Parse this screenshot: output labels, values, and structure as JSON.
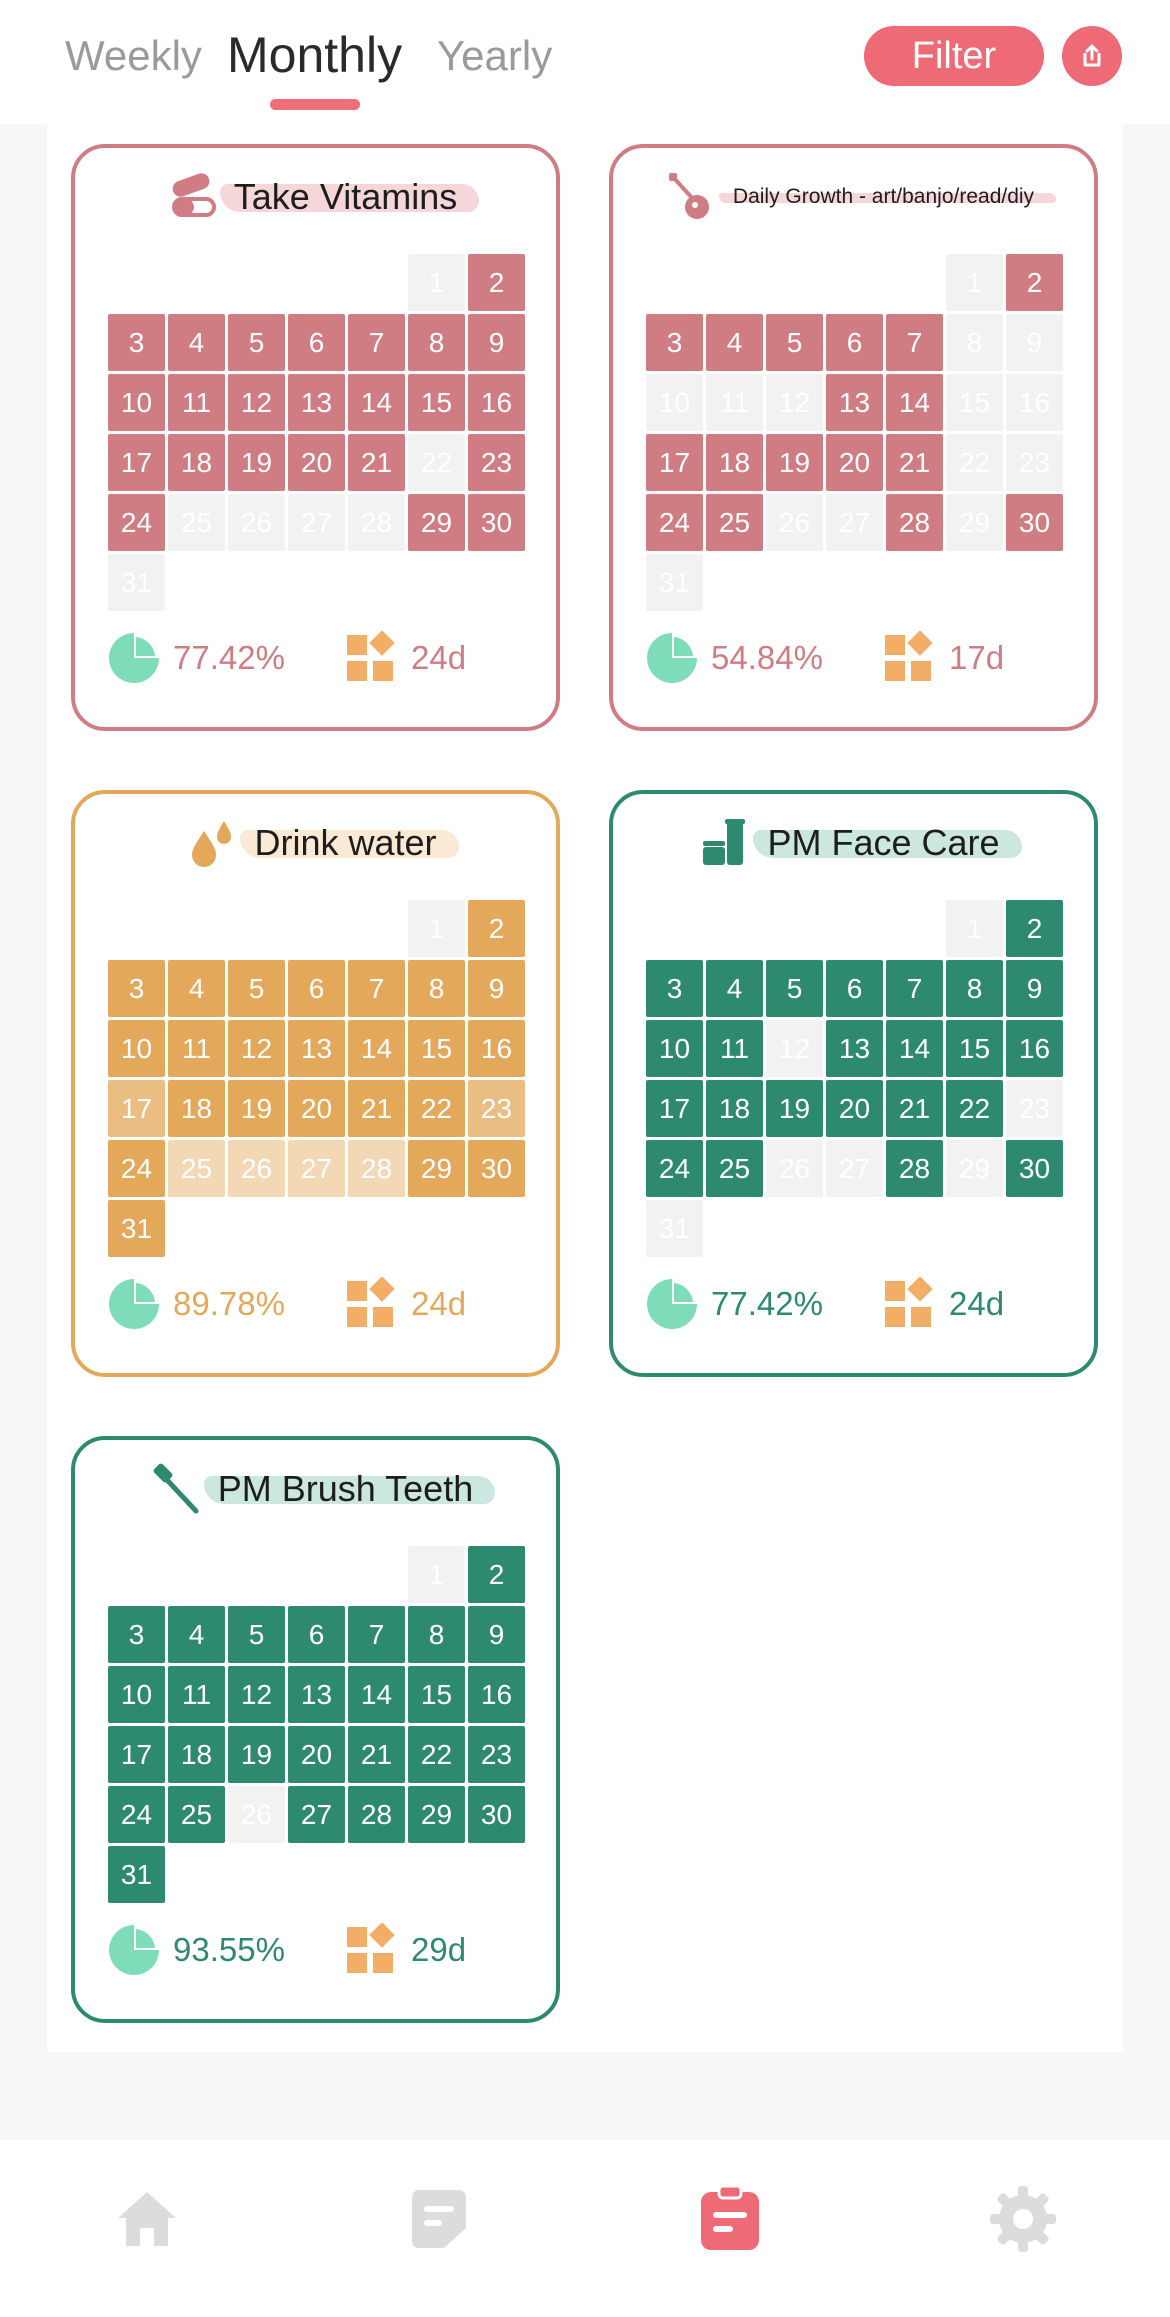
{
  "tabs": {
    "weekly": "Weekly",
    "monthly": "Monthly",
    "yearly": "Yearly",
    "active": "monthly"
  },
  "filter_label": "Filter",
  "icons": {
    "share": "share-icon",
    "home": "home-icon",
    "notes": "notes-icon",
    "stats": "stats-clipboard-icon",
    "settings": "gear-icon",
    "rate": "pie-chart-icon",
    "count": "blocks-icon"
  },
  "colors": {
    "accent": "#ee6a76",
    "pink": "#d07c83",
    "orange": "#e3a85a",
    "green": "#2e8a6f",
    "off": "#f2f2f2",
    "pie": "#7fdcb9"
  },
  "habits": [
    {
      "title": "Take Vitamins",
      "icon": "pills-icon",
      "color": "#d07c83",
      "rate": "77.42%",
      "days": "24d",
      "on": [
        2,
        3,
        4,
        5,
        6,
        7,
        8,
        9,
        10,
        11,
        12,
        13,
        14,
        15,
        16,
        17,
        18,
        19,
        20,
        21,
        23,
        24,
        29,
        30
      ],
      "light": []
    },
    {
      "title": "Daily Growth - art/banjo/read/diy",
      "icon": "guitar-icon",
      "color": "#d07c83",
      "rate": "54.84%",
      "days": "17d",
      "on": [
        2,
        3,
        4,
        5,
        6,
        7,
        13,
        14,
        17,
        18,
        19,
        20,
        21,
        24,
        25,
        28,
        30
      ],
      "light": []
    },
    {
      "title": "Drink water",
      "icon": "water-drops-icon",
      "color": "#e3a85a",
      "rate": "89.78%",
      "days": "24d",
      "on": [
        2,
        3,
        4,
        5,
        6,
        7,
        8,
        9,
        10,
        11,
        12,
        13,
        14,
        15,
        16,
        18,
        19,
        20,
        21,
        22,
        24,
        29,
        30,
        31
      ],
      "light": [
        17,
        23,
        25,
        26,
        27,
        28
      ]
    },
    {
      "title": "PM Face Care",
      "icon": "skincare-bottles-icon",
      "color": "#2e8a6f",
      "rate": "77.42%",
      "days": "24d",
      "on": [
        2,
        3,
        4,
        5,
        6,
        7,
        8,
        9,
        10,
        11,
        13,
        14,
        15,
        16,
        17,
        18,
        19,
        20,
        21,
        22,
        24,
        25,
        28,
        30
      ],
      "light": []
    },
    {
      "title": "PM Brush Teeth",
      "icon": "toothbrush-icon",
      "color": "#2e8a6f",
      "rate": "93.55%",
      "days": "29d",
      "on": [
        2,
        3,
        4,
        5,
        6,
        7,
        8,
        9,
        10,
        11,
        12,
        13,
        14,
        15,
        16,
        17,
        18,
        19,
        20,
        21,
        22,
        23,
        24,
        25,
        27,
        28,
        29,
        30,
        31
      ],
      "light": []
    }
  ]
}
